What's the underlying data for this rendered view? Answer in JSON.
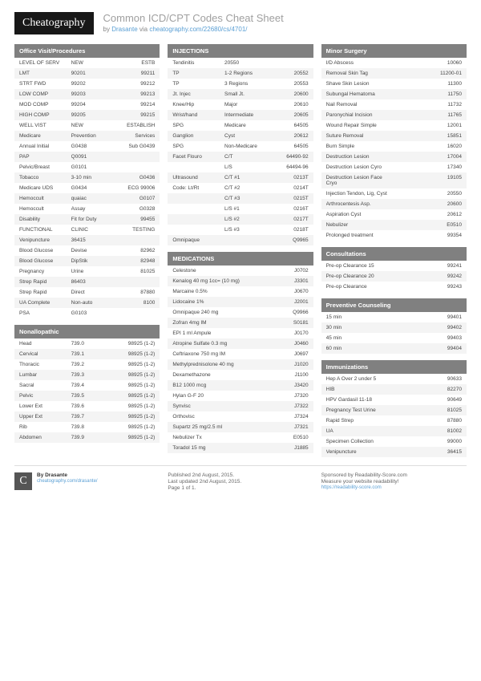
{
  "header": {
    "logo": "Cheatography",
    "title": "Common ICD/CPT Codes Cheat Sheet",
    "byline_prefix": "by ",
    "author": "Drasante",
    "byline_mid": " via ",
    "url": "cheatography.com/22680/cs/4701/"
  },
  "sections": {
    "office": {
      "title": "Office Visit/Procedures",
      "rows": [
        [
          "LEVEL OF SERV",
          "NEW",
          "ESTB"
        ],
        [
          "LMT",
          "90201",
          "99211"
        ],
        [
          "STRT FWD",
          "99202",
          "99212"
        ],
        [
          "LOW COMP",
          "99203",
          "99213"
        ],
        [
          "MOD COMP",
          "99204",
          "99214"
        ],
        [
          "HIGH COMP",
          "99205",
          "99215"
        ],
        [
          "WELL VIST",
          "NEW",
          "ESTABLISH"
        ],
        [
          "Medicare",
          "Prevention",
          "Services"
        ],
        [
          "Annual Initial",
          "G0438",
          "Sub G0439"
        ],
        [
          "PAP",
          "Q0091",
          ""
        ],
        [
          "Pelvic/Breast",
          "G0101",
          ""
        ],
        [
          "Tobacco",
          "3-10 min",
          "G0436"
        ],
        [
          "Medicare UDS",
          "G0434",
          "ECG 99006"
        ],
        [
          "Hemoccult",
          "quaiac",
          "G0107"
        ],
        [
          "Hemoccult",
          "Assay",
          "G0328"
        ],
        [
          "Disability",
          "Fit for Duty",
          "99455"
        ],
        [
          "FUNCTIONAL",
          "CLINIC",
          "TESTING"
        ],
        [
          "Venipuncture",
          "36415",
          ""
        ],
        [
          "Blood Glucose",
          "Devise",
          "82962"
        ],
        [
          "Blood Glucose",
          "DipStik",
          "82948"
        ],
        [
          "Pregnancy",
          "Urine",
          "81025"
        ],
        [
          "Strep Rapid",
          "86403",
          ""
        ],
        [
          "Strep Rapid",
          "Direct",
          "87880"
        ],
        [
          "UA Complete",
          "Non-auto",
          "8100"
        ],
        [
          "PSA",
          "G0103",
          ""
        ]
      ]
    },
    "nonallo": {
      "title": "Nonallopathic",
      "rows": [
        [
          "Head",
          "739.0",
          "98925 (1-2)"
        ],
        [
          "Cervical",
          "739.1",
          "98925 (1-2)"
        ],
        [
          "Thoracic",
          "739.2",
          "98925 (1-2)"
        ],
        [
          "Lumbar",
          "739.3",
          "98925 (1-2)"
        ],
        [
          "Sacral",
          "739.4",
          "98925 (1-2)"
        ],
        [
          "Pelvic",
          "739.5",
          "98925 (1-2)"
        ],
        [
          "Lower Ext",
          "739.6",
          "98925 (1-2)"
        ],
        [
          "Upper Ext",
          "739.7",
          "98925 (1-2)"
        ],
        [
          "Rib",
          "739.8",
          "98925 (1-2)"
        ],
        [
          "Abdomen",
          "739.9",
          "98925 (1-2)"
        ]
      ]
    },
    "injections": {
      "title": "INJECTIONS",
      "rows": [
        [
          "Tendinitis",
          "20550",
          ""
        ],
        [
          "TP",
          "1-2 Regions",
          "20552"
        ],
        [
          "TP",
          "3 Regions",
          "20553"
        ],
        [
          "Jt. Injec",
          "Small Jt.",
          "20600"
        ],
        [
          "Knee/Hip",
          "Major",
          "20610"
        ],
        [
          "Wrist/hand",
          "Intermediate",
          "20605"
        ],
        [
          "SPG",
          "Medicare",
          "64505"
        ],
        [
          "Ganglion",
          "Cyst",
          "20612"
        ],
        [
          "SPG",
          "Non-Medicare",
          "64505"
        ],
        [
          "Facet Flouro",
          "C/T",
          "64490-92"
        ],
        [
          "",
          "L/S",
          "64494-96"
        ],
        [
          "Ultrasound",
          "C/T #1",
          "0213T"
        ],
        [
          "Code: Lt/Rt",
          "C/T #2",
          "0214T"
        ],
        [
          "",
          "C/T #3",
          "0215T"
        ],
        [
          "",
          "L/S #1",
          "0216T"
        ],
        [
          "",
          "L/S #2",
          "0217T"
        ],
        [
          "",
          "L/S #3",
          "0218T"
        ],
        [
          "Omnipaque",
          "",
          "Q9965"
        ]
      ]
    },
    "medications": {
      "title": "MEDICATIONS",
      "rows": [
        [
          "Celestone",
          "J0702"
        ],
        [
          "Kenalog 40 mg 1cc= (10 mg)",
          "J3301"
        ],
        [
          "Marcaine 0.5%",
          "J0670"
        ],
        [
          "Lidocaine 1%",
          "J2001"
        ],
        [
          "Omnipaque 240 mg",
          "Q9966"
        ],
        [
          "Zofran 4mg IM",
          "S0181"
        ],
        [
          "EPI 1 ml Ampule",
          "J0170"
        ],
        [
          "Atropine Sulfate 0.3 mg",
          "J0460"
        ],
        [
          "Ceftriaxone 750 mg IM",
          "J0697"
        ],
        [
          "Methylprednisolone 40 mg",
          "J1020"
        ],
        [
          "Dexamethazone",
          "J1100"
        ],
        [
          "B12 1000 mcg",
          "J3420"
        ],
        [
          "Hylan G-F 20",
          "J7320"
        ],
        [
          "Synvisc",
          "J7322"
        ],
        [
          "Orthovisc",
          "J7324"
        ],
        [
          "Supartz 25 mg/2.5 ml",
          "J7321"
        ],
        [
          "Nebulizer Tx",
          "E0510"
        ],
        [
          "Toradol 15 mg",
          "J1885"
        ]
      ]
    },
    "minor": {
      "title": "Minor Surgery",
      "rows": [
        [
          "I/D Abscess",
          "10060"
        ],
        [
          "Removal Skin Tag",
          "11200-01"
        ],
        [
          "Shave Skin Lesion",
          "11300"
        ],
        [
          "Subungal Hematoma",
          "11750"
        ],
        [
          "Nail Removal",
          "11732"
        ],
        [
          "Paronychial Incision",
          "11765"
        ],
        [
          "Wound Repair Simple",
          "12001"
        ],
        [
          "Suture Removal",
          "15851"
        ],
        [
          "Burn Simple",
          "16020"
        ],
        [
          "Destruction Lesion",
          "17004"
        ],
        [
          "Destruction Lesion Cyro",
          "17340"
        ],
        [
          "Destruction Lesion Face Cryo",
          "19105"
        ],
        [
          "Injection Tendon, Lig, Cyst",
          "20550"
        ],
        [
          "Arthrocentesis Asp.",
          "20600"
        ],
        [
          "Aspiration Cyst",
          "20612"
        ],
        [
          "Nebulizer",
          "E0510"
        ],
        [
          "Prolonged treatment",
          "99354"
        ]
      ]
    },
    "consult": {
      "title": "Consultations",
      "rows": [
        [
          "Pre-op Clearance 15",
          "99241"
        ],
        [
          "Pre-op Clearance 20",
          "99242"
        ],
        [
          "Pre-op Clearance",
          "99243"
        ]
      ]
    },
    "prevent": {
      "title": "Preventive Counseling",
      "rows": [
        [
          "15 min",
          "99401"
        ],
        [
          "30 min",
          "99402"
        ],
        [
          "45 min",
          "99403"
        ],
        [
          "60 min",
          "99404"
        ]
      ]
    },
    "immun": {
      "title": "Immunizations",
      "rows": [
        [
          "Hep A Over 2 under 5",
          "90633"
        ],
        [
          "HIB",
          "82270"
        ],
        [
          "HPV Gardasil 11-18",
          "90649"
        ],
        [
          "Pregnancy Test Urine",
          "81025"
        ],
        [
          "Rapid Strep",
          "87880"
        ],
        [
          "UA",
          "81002"
        ],
        [
          "Specimen Collection",
          "99000"
        ],
        [
          "Venipuncture",
          "36415"
        ]
      ]
    }
  },
  "footer": {
    "col1_by": "By Drasante",
    "col1_url": "cheatography.com/drasante/",
    "col2_pub": "Published 2nd August, 2015.",
    "col2_upd": "Last updated 2nd August, 2015.",
    "col2_page": "Page 1 of 1.",
    "col3_spon": "Sponsored by Readability-Score.com",
    "col3_tag": "Measure your website readability!",
    "col3_url": "https://readability-score.com"
  }
}
